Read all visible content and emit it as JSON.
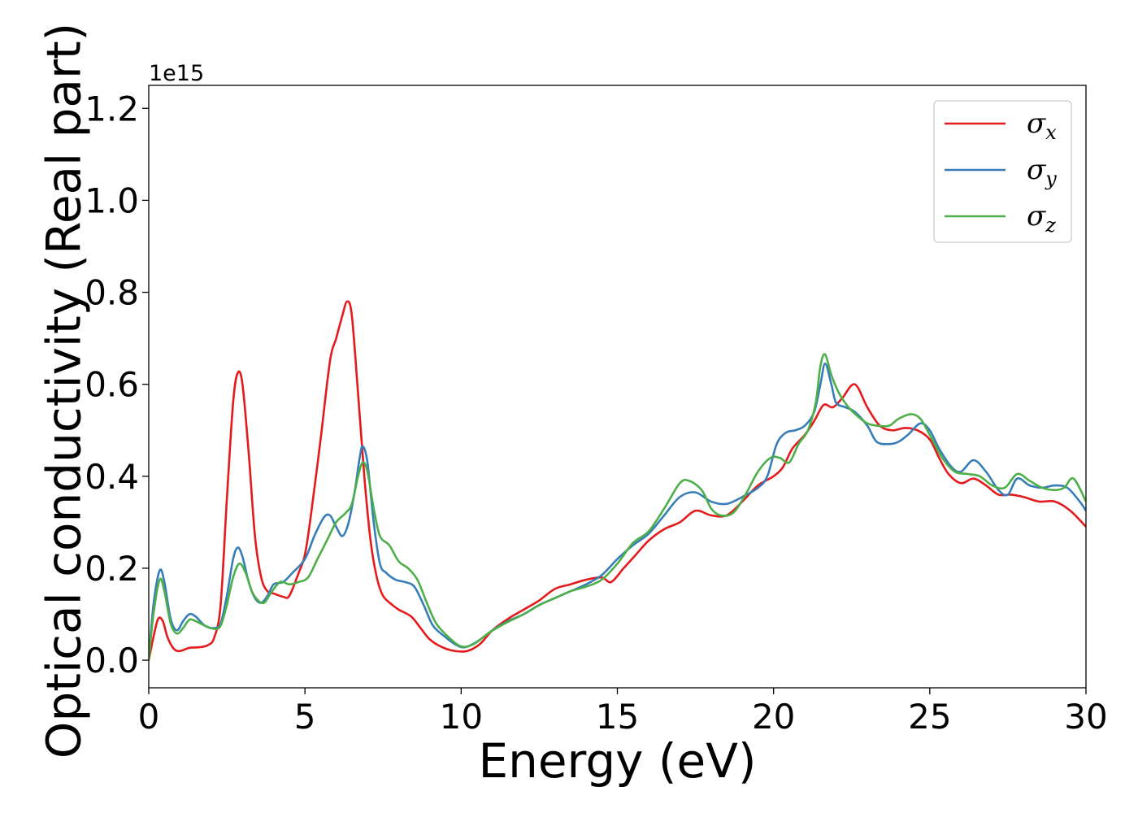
{
  "chart_data": {
    "type": "line",
    "xlabel": "Energy (eV)",
    "ylabel": "Optical conductivity (Real part)",
    "y_offset_label": "1e15",
    "xlim": [
      0,
      30
    ],
    "ylim": [
      -0.06,
      1.25
    ],
    "x_ticks": [
      0,
      5,
      10,
      15,
      20,
      25,
      30
    ],
    "x_tick_labels": [
      "0",
      "5",
      "10",
      "15",
      "20",
      "25",
      "30"
    ],
    "y_ticks": [
      0.0,
      0.2,
      0.4,
      0.6,
      0.8,
      1.0,
      1.2
    ],
    "y_tick_labels": [
      "0.0",
      "0.2",
      "0.4",
      "0.6",
      "0.8",
      "1.0",
      "1.2"
    ],
    "grid": false,
    "legend_position": "top-right",
    "series": [
      {
        "name": "σx",
        "symbol": "σ",
        "subscript": "x",
        "color": "#e41a1c",
        "points": [
          [
            0,
            0
          ],
          [
            0.15,
            0.05
          ],
          [
            0.3,
            0.09
          ],
          [
            0.45,
            0.085
          ],
          [
            0.6,
            0.05
          ],
          [
            0.8,
            0.025
          ],
          [
            1.0,
            0.02
          ],
          [
            1.3,
            0.027
          ],
          [
            1.6,
            0.028
          ],
          [
            1.9,
            0.033
          ],
          [
            2.1,
            0.05
          ],
          [
            2.3,
            0.12
          ],
          [
            2.5,
            0.35
          ],
          [
            2.7,
            0.56
          ],
          [
            2.85,
            0.625
          ],
          [
            3.0,
            0.6
          ],
          [
            3.2,
            0.45
          ],
          [
            3.4,
            0.27
          ],
          [
            3.6,
            0.18
          ],
          [
            3.8,
            0.15
          ],
          [
            4.0,
            0.145
          ],
          [
            4.3,
            0.138
          ],
          [
            4.5,
            0.14
          ],
          [
            4.8,
            0.19
          ],
          [
            5.0,
            0.23
          ],
          [
            5.2,
            0.32
          ],
          [
            5.5,
            0.48
          ],
          [
            5.8,
            0.65
          ],
          [
            6.0,
            0.7
          ],
          [
            6.2,
            0.75
          ],
          [
            6.35,
            0.78
          ],
          [
            6.5,
            0.75
          ],
          [
            6.7,
            0.58
          ],
          [
            6.9,
            0.4
          ],
          [
            7.1,
            0.26
          ],
          [
            7.3,
            0.18
          ],
          [
            7.5,
            0.14
          ],
          [
            7.8,
            0.12
          ],
          [
            8.0,
            0.11
          ],
          [
            8.4,
            0.095
          ],
          [
            8.7,
            0.07
          ],
          [
            9.0,
            0.045
          ],
          [
            9.4,
            0.028
          ],
          [
            9.8,
            0.02
          ],
          [
            10.2,
            0.02
          ],
          [
            10.6,
            0.035
          ],
          [
            11.0,
            0.065
          ],
          [
            11.5,
            0.09
          ],
          [
            12.0,
            0.11
          ],
          [
            12.5,
            0.13
          ],
          [
            13.0,
            0.155
          ],
          [
            13.5,
            0.165
          ],
          [
            14.0,
            0.175
          ],
          [
            14.5,
            0.18
          ],
          [
            14.8,
            0.17
          ],
          [
            15.2,
            0.2
          ],
          [
            15.6,
            0.23
          ],
          [
            16.0,
            0.26
          ],
          [
            16.5,
            0.285
          ],
          [
            17.0,
            0.3
          ],
          [
            17.5,
            0.325
          ],
          [
            18.0,
            0.315
          ],
          [
            18.5,
            0.315
          ],
          [
            19.0,
            0.345
          ],
          [
            19.5,
            0.38
          ],
          [
            20.0,
            0.4
          ],
          [
            20.3,
            0.42
          ],
          [
            20.6,
            0.46
          ],
          [
            21.0,
            0.49
          ],
          [
            21.3,
            0.52
          ],
          [
            21.6,
            0.555
          ],
          [
            21.9,
            0.55
          ],
          [
            22.2,
            0.57
          ],
          [
            22.6,
            0.6
          ],
          [
            23.0,
            0.55
          ],
          [
            23.4,
            0.51
          ],
          [
            23.8,
            0.5
          ],
          [
            24.2,
            0.505
          ],
          [
            24.6,
            0.5
          ],
          [
            25.0,
            0.48
          ],
          [
            25.3,
            0.44
          ],
          [
            25.6,
            0.405
          ],
          [
            26.0,
            0.385
          ],
          [
            26.4,
            0.395
          ],
          [
            26.8,
            0.38
          ],
          [
            27.2,
            0.36
          ],
          [
            27.6,
            0.36
          ],
          [
            28.0,
            0.355
          ],
          [
            28.5,
            0.345
          ],
          [
            29.0,
            0.345
          ],
          [
            29.5,
            0.325
          ],
          [
            30.0,
            0.29
          ]
        ]
      },
      {
        "name": "σy",
        "symbol": "σ",
        "subscript": "y",
        "color": "#377eb8",
        "points": [
          [
            0,
            0
          ],
          [
            0.15,
            0.12
          ],
          [
            0.35,
            0.195
          ],
          [
            0.5,
            0.17
          ],
          [
            0.7,
            0.09
          ],
          [
            0.9,
            0.065
          ],
          [
            1.1,
            0.085
          ],
          [
            1.3,
            0.1
          ],
          [
            1.5,
            0.095
          ],
          [
            1.8,
            0.075
          ],
          [
            2.1,
            0.07
          ],
          [
            2.3,
            0.08
          ],
          [
            2.5,
            0.14
          ],
          [
            2.7,
            0.22
          ],
          [
            2.85,
            0.245
          ],
          [
            3.0,
            0.225
          ],
          [
            3.2,
            0.17
          ],
          [
            3.4,
            0.135
          ],
          [
            3.6,
            0.125
          ],
          [
            3.8,
            0.14
          ],
          [
            4.0,
            0.165
          ],
          [
            4.3,
            0.17
          ],
          [
            4.6,
            0.19
          ],
          [
            5.0,
            0.22
          ],
          [
            5.3,
            0.27
          ],
          [
            5.6,
            0.31
          ],
          [
            5.8,
            0.315
          ],
          [
            6.0,
            0.29
          ],
          [
            6.2,
            0.27
          ],
          [
            6.4,
            0.3
          ],
          [
            6.6,
            0.37
          ],
          [
            6.75,
            0.44
          ],
          [
            6.85,
            0.465
          ],
          [
            7.0,
            0.43
          ],
          [
            7.2,
            0.3
          ],
          [
            7.4,
            0.21
          ],
          [
            7.6,
            0.19
          ],
          [
            7.9,
            0.175
          ],
          [
            8.2,
            0.17
          ],
          [
            8.5,
            0.16
          ],
          [
            8.8,
            0.12
          ],
          [
            9.1,
            0.075
          ],
          [
            9.5,
            0.05
          ],
          [
            9.8,
            0.035
          ],
          [
            10.1,
            0.028
          ],
          [
            10.5,
            0.04
          ],
          [
            11.0,
            0.065
          ],
          [
            11.5,
            0.085
          ],
          [
            12.0,
            0.1
          ],
          [
            12.5,
            0.12
          ],
          [
            13.0,
            0.135
          ],
          [
            13.5,
            0.15
          ],
          [
            14.0,
            0.165
          ],
          [
            14.5,
            0.185
          ],
          [
            15.0,
            0.22
          ],
          [
            15.5,
            0.25
          ],
          [
            16.0,
            0.275
          ],
          [
            16.5,
            0.315
          ],
          [
            17.0,
            0.355
          ],
          [
            17.5,
            0.365
          ],
          [
            18.0,
            0.345
          ],
          [
            18.5,
            0.34
          ],
          [
            19.0,
            0.355
          ],
          [
            19.5,
            0.375
          ],
          [
            19.8,
            0.4
          ],
          [
            20.1,
            0.47
          ],
          [
            20.4,
            0.495
          ],
          [
            20.7,
            0.5
          ],
          [
            21.0,
            0.51
          ],
          [
            21.3,
            0.54
          ],
          [
            21.5,
            0.6
          ],
          [
            21.65,
            0.645
          ],
          [
            21.85,
            0.6
          ],
          [
            22.0,
            0.56
          ],
          [
            22.3,
            0.55
          ],
          [
            22.6,
            0.54
          ],
          [
            23.0,
            0.51
          ],
          [
            23.3,
            0.475
          ],
          [
            23.7,
            0.47
          ],
          [
            24.0,
            0.475
          ],
          [
            24.3,
            0.49
          ],
          [
            24.7,
            0.515
          ],
          [
            25.0,
            0.5
          ],
          [
            25.3,
            0.46
          ],
          [
            25.7,
            0.42
          ],
          [
            26.0,
            0.41
          ],
          [
            26.4,
            0.435
          ],
          [
            26.8,
            0.41
          ],
          [
            27.2,
            0.37
          ],
          [
            27.5,
            0.36
          ],
          [
            27.8,
            0.395
          ],
          [
            28.2,
            0.38
          ],
          [
            28.6,
            0.375
          ],
          [
            29.0,
            0.38
          ],
          [
            29.4,
            0.375
          ],
          [
            29.8,
            0.345
          ],
          [
            30.0,
            0.325
          ]
        ]
      },
      {
        "name": "σz",
        "symbol": "σ",
        "subscript": "z",
        "color": "#4daf4a",
        "points": [
          [
            0,
            0
          ],
          [
            0.15,
            0.1
          ],
          [
            0.35,
            0.175
          ],
          [
            0.5,
            0.15
          ],
          [
            0.7,
            0.08
          ],
          [
            0.9,
            0.058
          ],
          [
            1.1,
            0.07
          ],
          [
            1.3,
            0.088
          ],
          [
            1.5,
            0.085
          ],
          [
            1.8,
            0.075
          ],
          [
            2.1,
            0.068
          ],
          [
            2.3,
            0.075
          ],
          [
            2.5,
            0.12
          ],
          [
            2.7,
            0.18
          ],
          [
            2.9,
            0.21
          ],
          [
            3.1,
            0.19
          ],
          [
            3.3,
            0.15
          ],
          [
            3.5,
            0.13
          ],
          [
            3.7,
            0.125
          ],
          [
            3.9,
            0.145
          ],
          [
            4.2,
            0.17
          ],
          [
            4.5,
            0.165
          ],
          [
            4.8,
            0.17
          ],
          [
            5.1,
            0.18
          ],
          [
            5.4,
            0.22
          ],
          [
            5.7,
            0.26
          ],
          [
            6.0,
            0.3
          ],
          [
            6.3,
            0.32
          ],
          [
            6.5,
            0.34
          ],
          [
            6.7,
            0.4
          ],
          [
            6.85,
            0.43
          ],
          [
            7.0,
            0.41
          ],
          [
            7.2,
            0.33
          ],
          [
            7.4,
            0.27
          ],
          [
            7.7,
            0.25
          ],
          [
            8.0,
            0.215
          ],
          [
            8.3,
            0.2
          ],
          [
            8.6,
            0.175
          ],
          [
            8.9,
            0.125
          ],
          [
            9.2,
            0.08
          ],
          [
            9.6,
            0.05
          ],
          [
            10.0,
            0.03
          ],
          [
            10.4,
            0.035
          ],
          [
            10.9,
            0.06
          ],
          [
            11.4,
            0.08
          ],
          [
            12.0,
            0.1
          ],
          [
            12.5,
            0.12
          ],
          [
            13.0,
            0.135
          ],
          [
            13.5,
            0.15
          ],
          [
            14.0,
            0.16
          ],
          [
            14.5,
            0.175
          ],
          [
            15.0,
            0.21
          ],
          [
            15.5,
            0.255
          ],
          [
            16.0,
            0.28
          ],
          [
            16.5,
            0.33
          ],
          [
            17.0,
            0.385
          ],
          [
            17.3,
            0.39
          ],
          [
            17.7,
            0.37
          ],
          [
            18.0,
            0.33
          ],
          [
            18.3,
            0.315
          ],
          [
            18.7,
            0.32
          ],
          [
            19.1,
            0.36
          ],
          [
            19.5,
            0.41
          ],
          [
            19.9,
            0.44
          ],
          [
            20.2,
            0.44
          ],
          [
            20.5,
            0.43
          ],
          [
            20.8,
            0.47
          ],
          [
            21.1,
            0.5
          ],
          [
            21.35,
            0.56
          ],
          [
            21.5,
            0.64
          ],
          [
            21.65,
            0.665
          ],
          [
            21.85,
            0.62
          ],
          [
            22.1,
            0.58
          ],
          [
            22.4,
            0.55
          ],
          [
            22.7,
            0.53
          ],
          [
            23.0,
            0.515
          ],
          [
            23.3,
            0.51
          ],
          [
            23.7,
            0.51
          ],
          [
            24.0,
            0.525
          ],
          [
            24.4,
            0.535
          ],
          [
            24.7,
            0.525
          ],
          [
            25.0,
            0.49
          ],
          [
            25.4,
            0.44
          ],
          [
            25.8,
            0.41
          ],
          [
            26.2,
            0.405
          ],
          [
            26.6,
            0.4
          ],
          [
            27.0,
            0.38
          ],
          [
            27.4,
            0.375
          ],
          [
            27.8,
            0.405
          ],
          [
            28.2,
            0.39
          ],
          [
            28.6,
            0.375
          ],
          [
            29.0,
            0.37
          ],
          [
            29.3,
            0.375
          ],
          [
            29.6,
            0.395
          ],
          [
            30.0,
            0.345
          ]
        ]
      }
    ]
  }
}
